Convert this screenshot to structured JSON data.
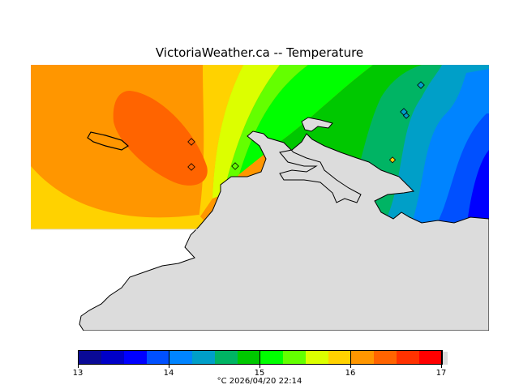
{
  "title": "VictoriaWeather.ca  --  Temperature",
  "legend": {
    "colors": [
      "#0a0a96",
      "#0000c8",
      "#0000ff",
      "#0050ff",
      "#0084ff",
      "#009fc8",
      "#00b464",
      "#00c800",
      "#00ff00",
      "#64ff00",
      "#dcff00",
      "#ffd200",
      "#ff9600",
      "#ff6400",
      "#ff3200",
      "#ff0000"
    ],
    "ticks": [
      "13",
      "14",
      "15",
      "16",
      "17"
    ],
    "unit_caption": "°C  2026/04/20 22:14"
  },
  "map": {
    "land_color": "#dcdcdc",
    "stations": [
      "station",
      "station",
      "station",
      "station",
      "station",
      "station",
      "station"
    ]
  }
}
